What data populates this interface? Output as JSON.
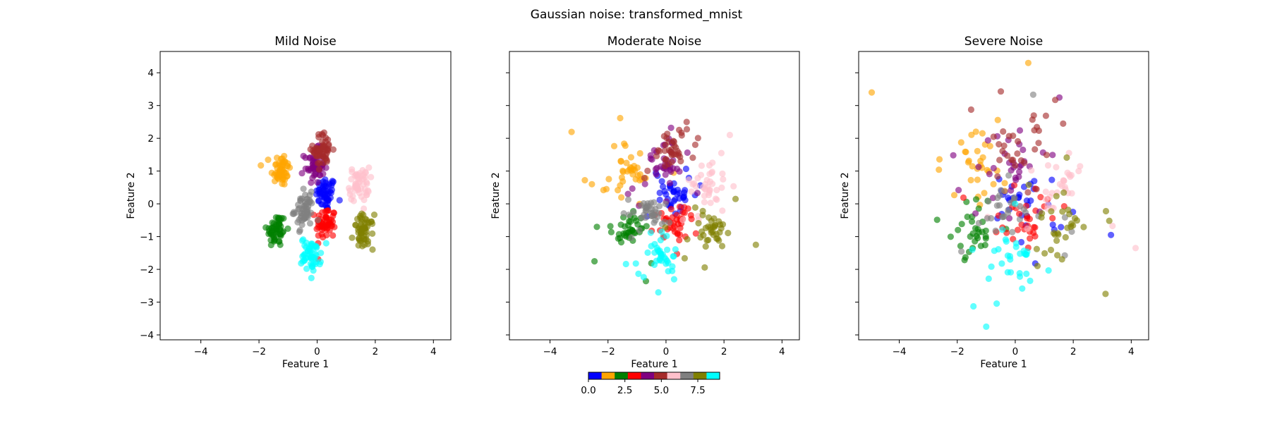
{
  "chart_data": {
    "type": "scatter",
    "suptitle": "Gaussian noise: transformed_mnist",
    "panels": [
      {
        "id": "mild",
        "title": "Mild Noise",
        "xlabel": "Feature 1",
        "ylabel": "Feature 2",
        "spread": 0.25,
        "n": 55
      },
      {
        "id": "moderate",
        "title": "Moderate Noise",
        "xlabel": "Feature 1",
        "ylabel": "Feature 2",
        "spread": 0.52,
        "n": 40
      },
      {
        "id": "severe",
        "title": "Severe Noise",
        "xlabel": "Feature 1",
        "ylabel": "Feature 2",
        "spread": 0.9,
        "n": 32
      }
    ],
    "xlim": [
      -5.4,
      4.6
    ],
    "ylim": [
      -4.15,
      4.65
    ],
    "xticks": [
      -4,
      -2,
      0,
      2,
      4
    ],
    "yticks": [
      -4,
      -3,
      -2,
      -1,
      0,
      1,
      2,
      3,
      4
    ],
    "classes": [
      {
        "label": 0,
        "color": "#0000ff",
        "center": [
          0.3,
          0.3
        ]
      },
      {
        "label": 1,
        "color": "#ffa500",
        "center": [
          -1.25,
          1.05
        ]
      },
      {
        "label": 2,
        "color": "#008000",
        "center": [
          -1.4,
          -0.8
        ]
      },
      {
        "label": 3,
        "color": "#ff0000",
        "center": [
          0.3,
          -0.6
        ]
      },
      {
        "label": 4,
        "color": "#800080",
        "center": [
          -0.1,
          1.15
        ]
      },
      {
        "label": 5,
        "color": "#a52a2a",
        "center": [
          0.2,
          1.65
        ]
      },
      {
        "label": 6,
        "color": "#ffc0cb",
        "center": [
          1.45,
          0.6
        ]
      },
      {
        "label": 7,
        "color": "#808080",
        "center": [
          -0.45,
          -0.2
        ]
      },
      {
        "label": 8,
        "color": "#808000",
        "center": [
          1.6,
          -0.85
        ]
      },
      {
        "label": 9,
        "color": "#00ffff",
        "center": [
          -0.2,
          -1.55
        ]
      }
    ],
    "outliers": [
      {
        "panel": "severe",
        "class": 1,
        "point": [
          -4.95,
          3.4
        ]
      },
      {
        "panel": "severe",
        "class": 1,
        "point": [
          0.45,
          4.3
        ]
      },
      {
        "panel": "severe",
        "class": 9,
        "point": [
          -1.0,
          -3.75
        ]
      },
      {
        "panel": "severe",
        "class": 6,
        "point": [
          4.15,
          -1.35
        ]
      },
      {
        "panel": "severe",
        "class": 0,
        "point": [
          3.3,
          -0.95
        ]
      },
      {
        "panel": "moderate",
        "class": 8,
        "point": [
          3.1,
          -1.25
        ]
      },
      {
        "panel": "moderate",
        "class": 6,
        "point": [
          2.2,
          2.1
        ]
      }
    ],
    "colorbar": {
      "ticks": [
        0.0,
        2.5,
        5.0,
        7.5
      ],
      "tick_labels": [
        "0.0",
        "2.5",
        "5.0",
        "7.5"
      ],
      "range": [
        0,
        9
      ]
    }
  }
}
